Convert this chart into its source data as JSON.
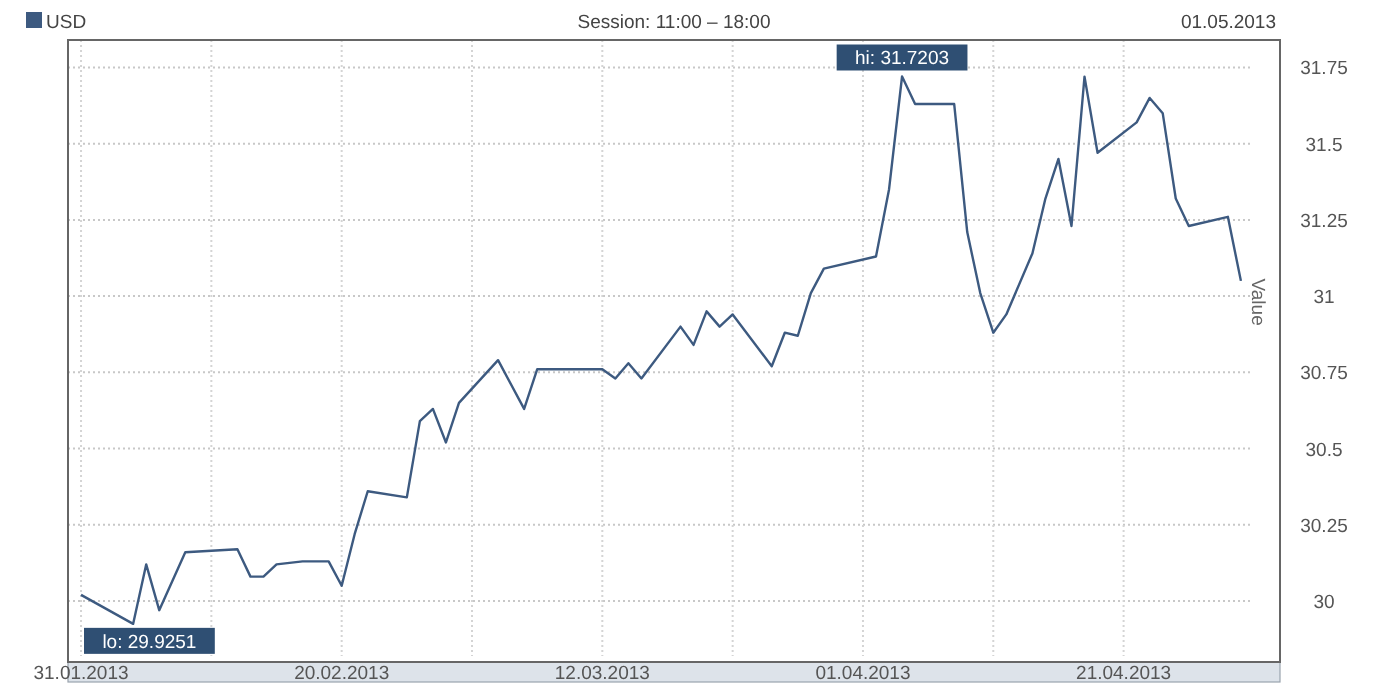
{
  "chart_data": {
    "type": "line",
    "title": "Session: 11:00 – 18:00",
    "subtitle": "01.05.2013",
    "ylabel": "Value",
    "legend": "top left",
    "grid": true,
    "line_style": "solid",
    "marker": "none",
    "x": [
      "2013-01-31",
      "2013-02-04",
      "2013-02-05",
      "2013-02-06",
      "2013-02-08",
      "2013-02-12",
      "2013-02-13",
      "2013-02-14",
      "2013-02-15",
      "2013-02-17",
      "2013-02-19",
      "2013-02-20",
      "2013-02-21",
      "2013-02-22",
      "2013-02-25",
      "2013-02-26",
      "2013-02-27",
      "2013-02-28",
      "2013-03-01",
      "2013-03-04",
      "2013-03-06",
      "2013-03-07",
      "2013-03-12",
      "2013-03-13",
      "2013-03-14",
      "2013-03-15",
      "2013-03-18",
      "2013-03-19",
      "2013-03-20",
      "2013-03-21",
      "2013-03-22",
      "2013-03-25",
      "2013-03-26",
      "2013-03-27",
      "2013-03-28",
      "2013-03-29",
      "2013-04-02",
      "2013-04-03",
      "2013-04-04",
      "2013-04-05",
      "2013-04-08",
      "2013-04-09",
      "2013-04-10",
      "2013-04-11",
      "2013-04-12",
      "2013-04-14",
      "2013-04-15",
      "2013-04-16",
      "2013-04-17",
      "2013-04-18",
      "2013-04-19",
      "2013-04-22",
      "2013-04-23",
      "2013-04-24",
      "2013-04-25",
      "2013-04-26",
      "2013-04-29",
      "2013-04-30"
    ],
    "series": [
      {
        "name": "USD",
        "color": "#3d5a80",
        "values": [
          30.02,
          29.9251,
          30.12,
          29.97,
          30.16,
          30.17,
          30.08,
          30.08,
          30.12,
          30.13,
          30.13,
          30.05,
          30.22,
          30.36,
          30.34,
          30.59,
          30.63,
          30.52,
          30.65,
          30.79,
          30.63,
          30.76,
          30.76,
          30.73,
          30.78,
          30.73,
          30.9,
          30.84,
          30.95,
          30.9,
          30.94,
          30.77,
          30.88,
          30.87,
          31.01,
          31.09,
          31.13,
          31.35,
          31.7203,
          31.63,
          31.63,
          31.21,
          31.01,
          30.88,
          30.94,
          31.14,
          31.32,
          31.45,
          31.23,
          31.72,
          31.47,
          31.57,
          31.65,
          31.6,
          31.32,
          31.23,
          31.26,
          31.05
        ]
      }
    ],
    "xlim": [
      "2013-01-30",
      "2013-05-03"
    ],
    "xticks": [
      {
        "value": "2013-01-31",
        "label": "31.01.2013"
      },
      {
        "value": "2013-02-10",
        "label": null
      },
      {
        "value": "2013-02-20",
        "label": "20.02.2013"
      },
      {
        "value": "2013-03-02",
        "label": null
      },
      {
        "value": "2013-03-12",
        "label": "12.03.2013"
      },
      {
        "value": "2013-03-22",
        "label": null
      },
      {
        "value": "2013-04-01",
        "label": "01.04.2013"
      },
      {
        "value": "2013-04-11",
        "label": null
      },
      {
        "value": "2013-04-21",
        "label": "21.04.2013"
      }
    ],
    "ylim": [
      29.8,
      31.84
    ],
    "yticks": [
      30,
      30.25,
      30.5,
      30.75,
      31,
      31.25,
      31.5,
      31.75
    ],
    "annotations": [
      {
        "text": "hi: 31.7203",
        "x": "2013-04-04",
        "y": 31.7203
      },
      {
        "text": "lo: 29.9251",
        "x": "2013-02-04",
        "y": 29.9251
      }
    ]
  }
}
